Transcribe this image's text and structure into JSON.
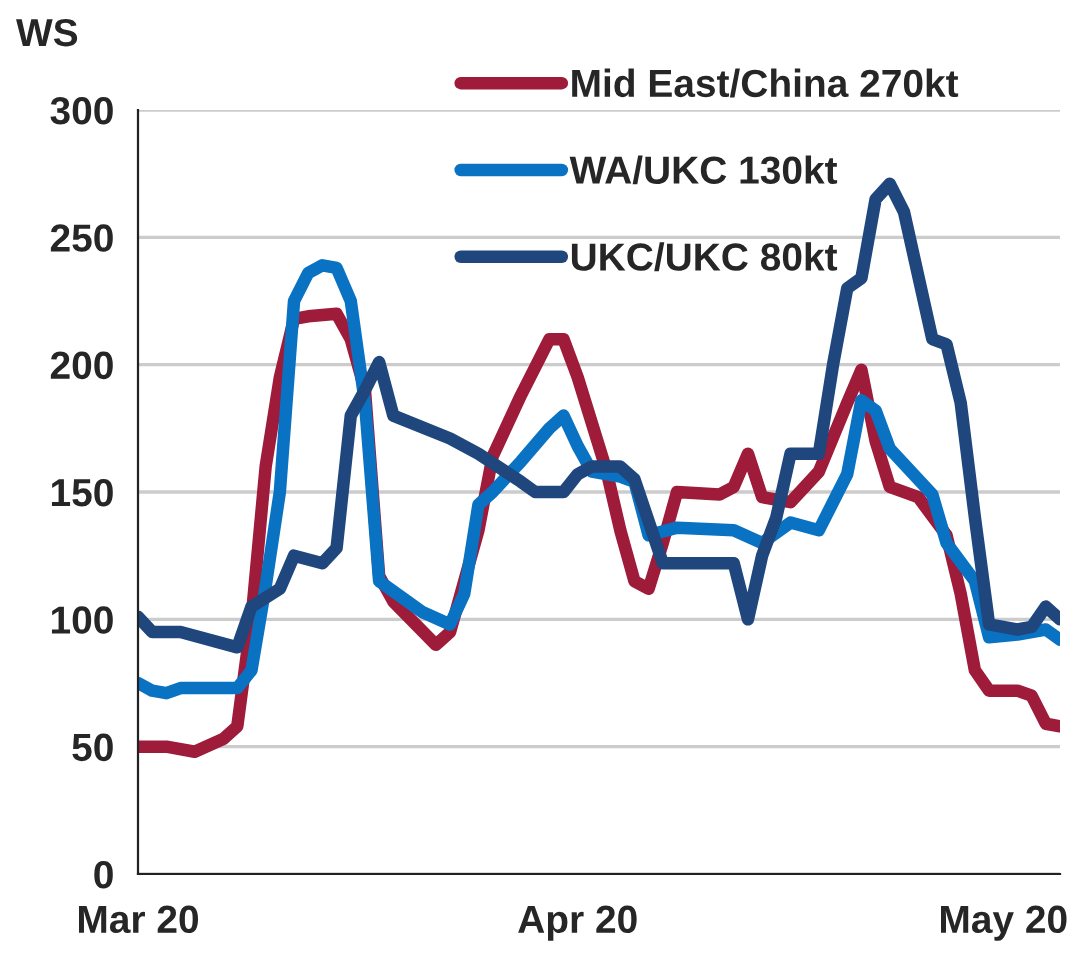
{
  "chart_data": {
    "type": "line",
    "ylabel": "WS",
    "xlim": [
      "2020-03-01",
      "2020-05-05"
    ],
    "xticks": [
      {
        "value": "2020-03-01",
        "label": "Mar 20"
      },
      {
        "value": "2020-04-01",
        "label": "Apr 20"
      },
      {
        "value": "2020-05-01",
        "label": "May 20"
      }
    ],
    "ylim": [
      0,
      300
    ],
    "yticks": [
      0,
      50,
      100,
      150,
      200,
      250,
      300
    ],
    "grid": "y",
    "legend": "top",
    "line_style": "solid",
    "marker": "none",
    "series": [
      {
        "name": "Mid East/China 270kt",
        "color": "#9e1b3a",
        "x": [
          "2020-03-01",
          "2020-03-03",
          "2020-03-05",
          "2020-03-07",
          "2020-03-08",
          "2020-03-09",
          "2020-03-10",
          "2020-03-11",
          "2020-03-12",
          "2020-03-13",
          "2020-03-15",
          "2020-03-16",
          "2020-03-17",
          "2020-03-18",
          "2020-03-19",
          "2020-03-22",
          "2020-03-23",
          "2020-03-25",
          "2020-03-26",
          "2020-03-28",
          "2020-03-30",
          "2020-03-31",
          "2020-04-01",
          "2020-04-03",
          "2020-04-04",
          "2020-04-05",
          "2020-04-06",
          "2020-04-07",
          "2020-04-08",
          "2020-04-11",
          "2020-04-12",
          "2020-04-13",
          "2020-04-14",
          "2020-04-16",
          "2020-04-18",
          "2020-04-20",
          "2020-04-21",
          "2020-04-22",
          "2020-04-23",
          "2020-04-25",
          "2020-04-27",
          "2020-04-28",
          "2020-04-29",
          "2020-04-30",
          "2020-05-02",
          "2020-05-03",
          "2020-05-04",
          "2020-05-05"
        ],
        "values": [
          50,
          50,
          48,
          53,
          58,
          100,
          160,
          195,
          218,
          219,
          220,
          210,
          190,
          117,
          107,
          90,
          95,
          135,
          164,
          188,
          210,
          210,
          195,
          159,
          135,
          115,
          112,
          130,
          150,
          149,
          152,
          165,
          148,
          146,
          158,
          185,
          198,
          170,
          152,
          148,
          133,
          110,
          80,
          72,
          72,
          70,
          59,
          58
        ]
      },
      {
        "name": "WA/UKC 130kt",
        "color": "#0a72c2",
        "x": [
          "2020-03-01",
          "2020-03-02",
          "2020-03-03",
          "2020-03-04",
          "2020-03-08",
          "2020-03-09",
          "2020-03-10",
          "2020-03-11",
          "2020-03-12",
          "2020-03-13",
          "2020-03-14",
          "2020-03-15",
          "2020-03-16",
          "2020-03-17",
          "2020-03-18",
          "2020-03-21",
          "2020-03-23",
          "2020-03-24",
          "2020-03-25",
          "2020-03-26",
          "2020-03-28",
          "2020-03-30",
          "2020-03-31",
          "2020-04-01",
          "2020-04-02",
          "2020-04-04",
          "2020-04-05",
          "2020-04-06",
          "2020-04-08",
          "2020-04-12",
          "2020-04-14",
          "2020-04-16",
          "2020-04-18",
          "2020-04-20",
          "2020-04-21",
          "2020-04-22",
          "2020-04-23",
          "2020-04-26",
          "2020-04-27",
          "2020-04-29",
          "2020-04-30",
          "2020-05-02",
          "2020-05-04",
          "2020-05-05"
        ],
        "values": [
          75,
          72,
          71,
          73,
          73,
          80,
          113,
          150,
          225,
          236,
          239,
          238,
          225,
          185,
          115,
          103,
          98,
          110,
          145,
          150,
          162,
          175,
          180,
          168,
          158,
          156,
          154,
          133,
          136,
          135,
          130,
          138,
          135,
          157,
          186,
          182,
          167,
          149,
          130,
          115,
          93,
          94,
          96,
          92
        ]
      },
      {
        "name": "UKC/UKC 80kt",
        "color": "#1f477d",
        "x": [
          "2020-03-01",
          "2020-03-02",
          "2020-03-04",
          "2020-03-08",
          "2020-03-09",
          "2020-03-11",
          "2020-03-12",
          "2020-03-14",
          "2020-03-15",
          "2020-03-16",
          "2020-03-17",
          "2020-03-18",
          "2020-03-19",
          "2020-03-23",
          "2020-03-25",
          "2020-03-28",
          "2020-03-29",
          "2020-03-31",
          "2020-04-01",
          "2020-04-02",
          "2020-04-04",
          "2020-04-05",
          "2020-04-07",
          "2020-04-12",
          "2020-04-13",
          "2020-04-14",
          "2020-04-15",
          "2020-04-16",
          "2020-04-18",
          "2020-04-19",
          "2020-04-20",
          "2020-04-21",
          "2020-04-22",
          "2020-04-23",
          "2020-04-24",
          "2020-04-26",
          "2020-04-27",
          "2020-04-28",
          "2020-04-29",
          "2020-04-30",
          "2020-05-02",
          "2020-05-03",
          "2020-05-04",
          "2020-05-05"
        ],
        "values": [
          101,
          95,
          95,
          89,
          105,
          112,
          125,
          122,
          128,
          180,
          190,
          201,
          180,
          171,
          165,
          154,
          150,
          150,
          157,
          160,
          160,
          155,
          122,
          122,
          100,
          125,
          140,
          165,
          165,
          200,
          230,
          234,
          265,
          271,
          260,
          210,
          208,
          185,
          140,
          98,
          96,
          97,
          105,
          100
        ]
      }
    ]
  }
}
